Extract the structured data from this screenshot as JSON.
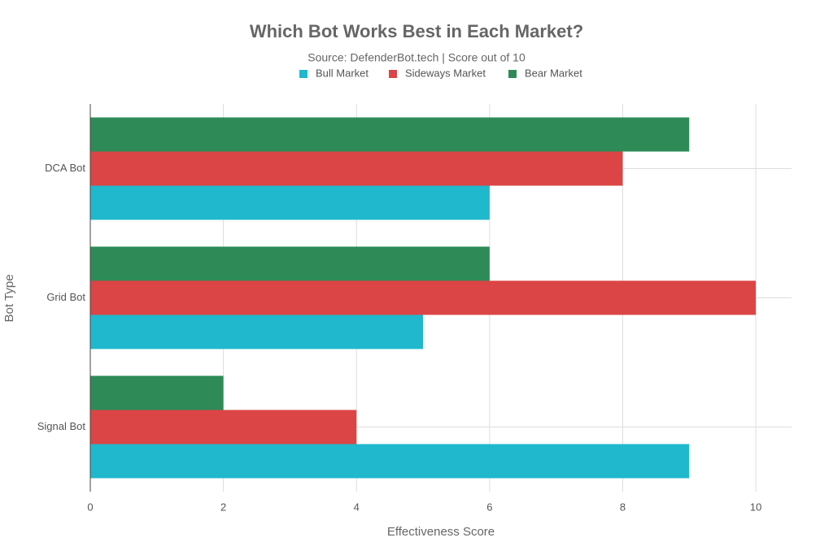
{
  "chart_data": {
    "type": "hbar",
    "title": "Which Bot Works Best in Each Market?",
    "subtitle": "Source: DefenderBot.tech | Score out of 10",
    "x_label": "Effectiveness Score",
    "y_label": "Bot Type",
    "categories": [
      "DCA Bot",
      "Grid Bot",
      "Signal Bot"
    ],
    "series": [
      {
        "name": "Bull Market",
        "color": "#1fb8cd",
        "values": [
          6,
          5,
          9
        ]
      },
      {
        "name": "Sideways Market",
        "color": "#db4545",
        "values": [
          8,
          10,
          4
        ]
      },
      {
        "name": "Bear Market",
        "color": "#2e8b57",
        "values": [
          9,
          6,
          2
        ]
      }
    ],
    "xlim": [
      0,
      10.5
    ],
    "xticks": [
      0,
      2,
      4,
      6,
      8,
      10
    ],
    "grid": true
  }
}
